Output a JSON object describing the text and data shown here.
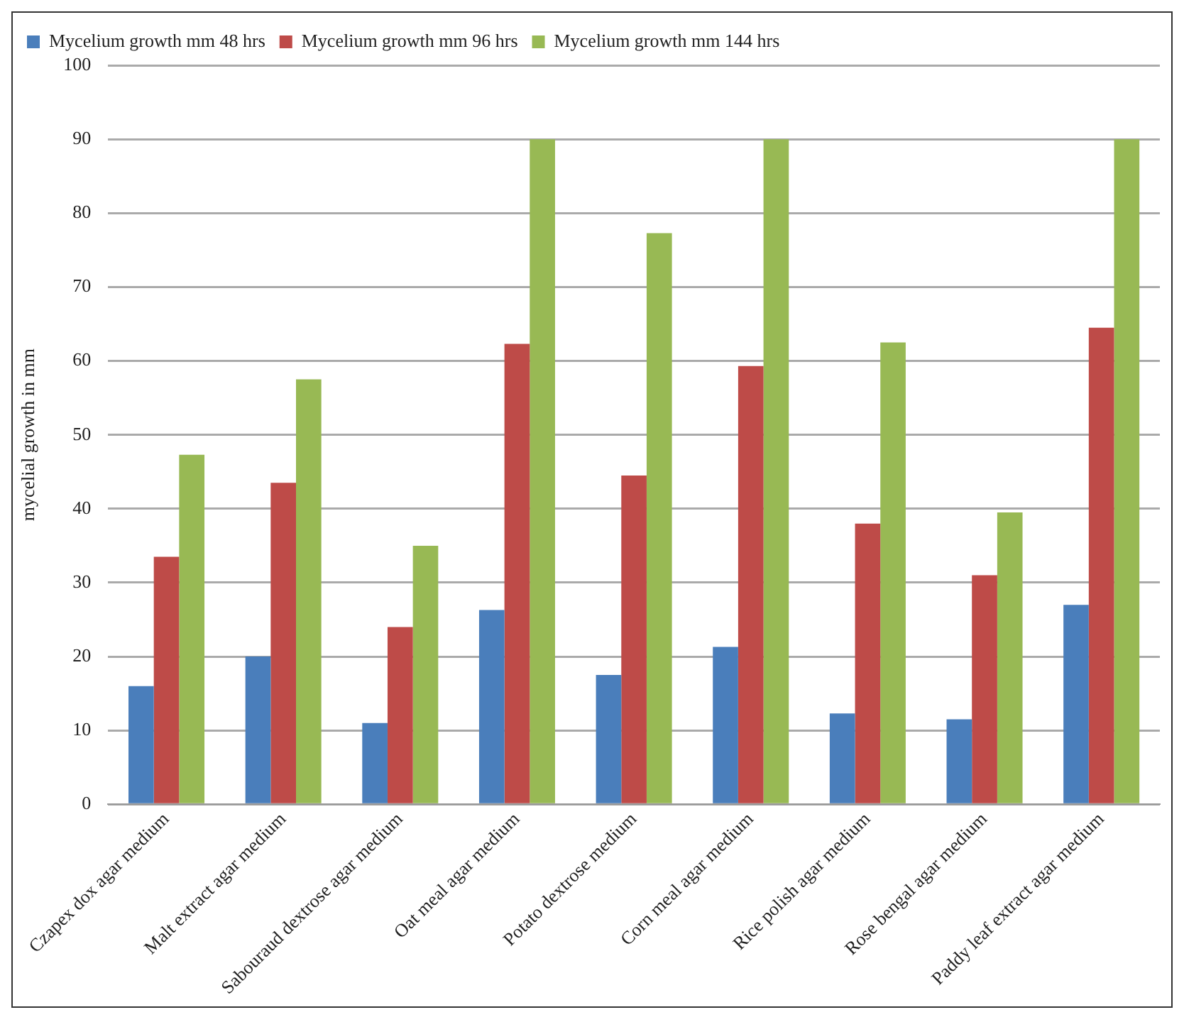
{
  "chart_data": {
    "type": "bar",
    "ylabel": "mycelial growth in mm",
    "categories": [
      "Czapex dox agar medium",
      "Malt extract agar medium",
      "Sabouraud dextrose agar medium",
      "Oat meal agar medium",
      "Potato dextrose medium",
      "Corn meal agar medium",
      "Rice polish agar medium",
      "Rose bengal agar medium",
      "Paddy leaf extract agar medium"
    ],
    "series": [
      {
        "name": "Mycelium growth mm 48 hrs",
        "color": "#4a7ebb",
        "values": [
          16,
          20,
          11,
          26.3,
          17.5,
          21.3,
          12.3,
          11.5,
          27
        ]
      },
      {
        "name": "Mycelium growth mm 96 hrs",
        "color": "#be4b48",
        "values": [
          33.5,
          43.5,
          24,
          62.3,
          44.5,
          59.3,
          38,
          31,
          64.5
        ]
      },
      {
        "name": "Mycelium growth mm 144 hrs",
        "color": "#98b954",
        "values": [
          47.3,
          57.5,
          35,
          90,
          77.3,
          90,
          62.5,
          39.5,
          90
        ]
      }
    ],
    "ylim": [
      0,
      100
    ],
    "yticks": [
      0,
      10,
      20,
      30,
      40,
      50,
      60,
      70,
      80,
      90,
      100
    ],
    "grid": "y",
    "legend": "top"
  }
}
